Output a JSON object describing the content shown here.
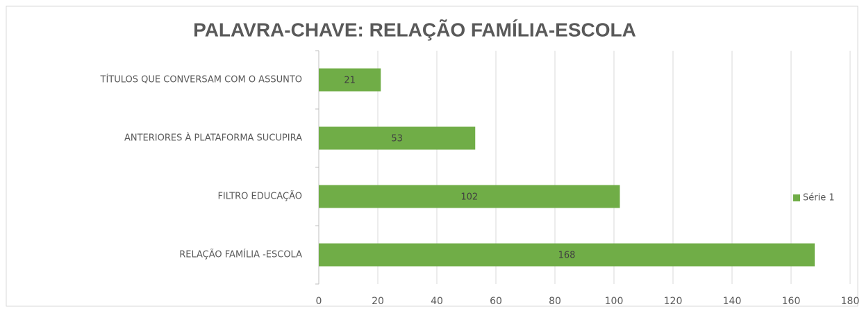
{
  "chart_data": {
    "type": "hbar",
    "title": "PALAVRA-CHAVE: RELAÇÃO FAMÍLIA-ESCOLA",
    "categories": [
      "RELAÇÃO FAMÍLIA -ESCOLA",
      "FILTRO EDUCAÇÃO",
      "ANTERIORES À PLATAFORMA SUCUPIRA",
      "TÍTULOS QUE CONVERSAM COM O ASSUNTO"
    ],
    "series": [
      {
        "name": "Série 1",
        "color": "#70ad47",
        "values": [
          168,
          102,
          53,
          21
        ]
      }
    ],
    "xlim": [
      0,
      180
    ],
    "xticks": [
      0,
      20,
      40,
      60,
      80,
      100,
      120,
      140,
      160,
      180
    ],
    "grid": true,
    "legend": "right"
  }
}
